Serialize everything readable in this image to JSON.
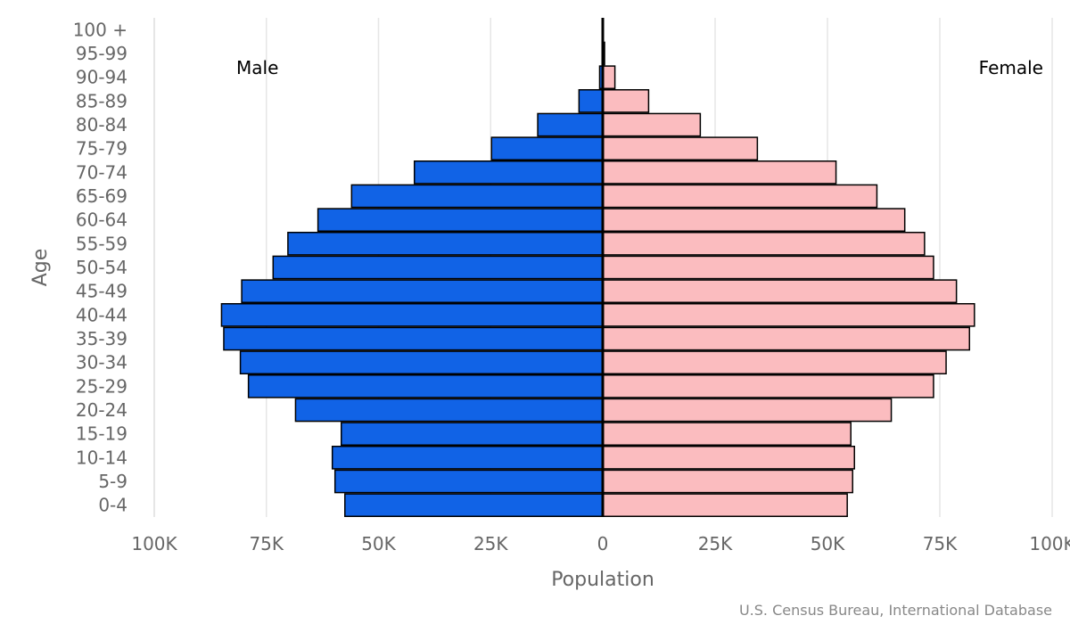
{
  "chart_data": {
    "type": "bar",
    "orientation": "horizontal",
    "layout": "population-pyramid",
    "title": "",
    "xlabel": "Population",
    "ylabel": "Age",
    "xlim": [
      -100000,
      100000
    ],
    "x_ticks": [
      -100000,
      -75000,
      -50000,
      -25000,
      0,
      25000,
      50000,
      75000,
      100000
    ],
    "x_tick_labels": [
      "100K",
      "75K",
      "50K",
      "25K",
      "0",
      "25K",
      "50K",
      "75K",
      "100K"
    ],
    "grid": true,
    "categories": [
      "100 +",
      "95-99",
      "90-94",
      "85-89",
      "80-84",
      "75-79",
      "70-74",
      "65-69",
      "60-64",
      "55-59",
      "50-54",
      "45-49",
      "40-44",
      "35-39",
      "30-34",
      "25-29",
      "20-24",
      "15-19",
      "10-14",
      "5-9",
      "0-4"
    ],
    "series": [
      {
        "name": "Male",
        "color": "#1163e6",
        "values": [
          50,
          150,
          700,
          5300,
          14500,
          24800,
          42000,
          56000,
          63500,
          70200,
          73500,
          80500,
          85000,
          84500,
          80800,
          79000,
          68500,
          58300,
          60300,
          59700,
          57500
        ]
      },
      {
        "name": "Female",
        "color": "#fbbcbf",
        "values": [
          100,
          400,
          2700,
          10200,
          21700,
          34400,
          51900,
          61000,
          67200,
          71600,
          73600,
          78700,
          82700,
          81600,
          76400,
          73600,
          64200,
          55200,
          56000,
          55600,
          54400
        ]
      }
    ],
    "credit": "U.S. Census Bureau, International Database"
  }
}
